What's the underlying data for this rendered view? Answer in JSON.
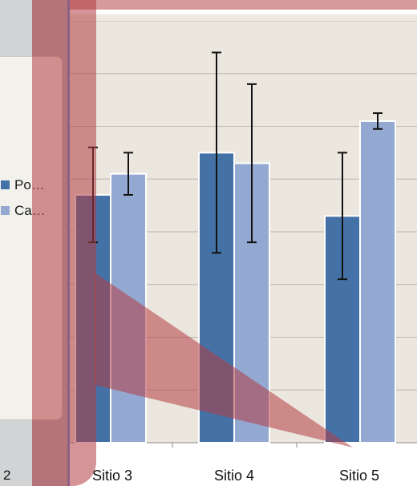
{
  "chart_data": {
    "type": "bar",
    "categories": [
      "Sitio 3",
      "Sitio 4",
      "Sitio 5"
    ],
    "partial_left_category_label": "2",
    "series": [
      {
        "name": "Po…",
        "color": "#4472a6",
        "values": [
          47,
          55,
          43
        ],
        "error": [
          9,
          19,
          12
        ]
      },
      {
        "name": "Ca…",
        "color": "#93a9d2",
        "values": [
          51,
          53,
          61
        ],
        "error": [
          4,
          15,
          1.5
        ]
      }
    ],
    "ylim": [
      0,
      80
    ],
    "grid": true,
    "legend_placement": "left"
  },
  "colors": {
    "plot_background": "#ebe7de",
    "gridline": "#b9b6b0",
    "overlay_red": "#b23c41"
  }
}
